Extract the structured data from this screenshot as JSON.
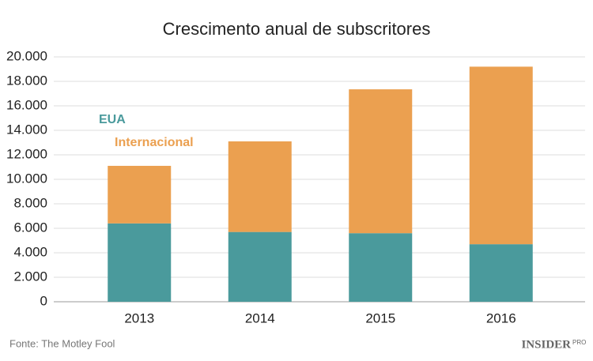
{
  "chart_data": {
    "type": "stacked_bar",
    "title": "Crescimento anual de subscritores",
    "categories": [
      "2013",
      "2014",
      "2015",
      "2016"
    ],
    "series": [
      {
        "name": "EUA",
        "color": "#4a9a9c",
        "values": [
          6400,
          5700,
          5600,
          4700
        ]
      },
      {
        "name": "Internacional",
        "color": "#eba050",
        "values": [
          4700,
          7400,
          11750,
          14500
        ]
      }
    ],
    "ylim": [
      0,
      20000
    ],
    "yticks": [
      0,
      {
        "value": 2000,
        "label": "2.000"
      },
      {
        "value": 4000,
        "label": "4.000"
      },
      {
        "value": 6000,
        "label": "6.000"
      },
      {
        "value": 8000,
        "label": "8.000"
      },
      {
        "value": 10000,
        "label": "10.000"
      },
      {
        "value": 12000,
        "label": "12.000"
      },
      {
        "value": 14000,
        "label": "14.000"
      },
      {
        "value": 16000,
        "label": "16.000"
      },
      {
        "value": 18000,
        "label": "18.000"
      },
      {
        "value": 20000,
        "label": "20.000"
      }
    ],
    "grid": true,
    "source": "Fonte: The Motley Fool",
    "logo": "INSIDER",
    "logo_suffix": "PRO"
  }
}
